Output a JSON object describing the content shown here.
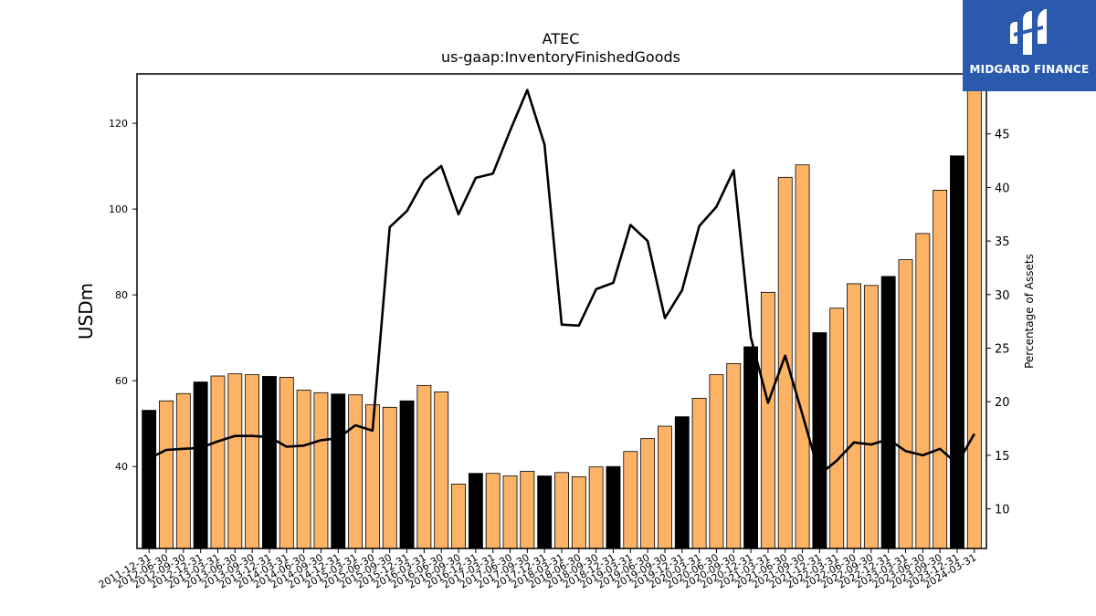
{
  "logo": {
    "text": "MIDGARD FINANCE"
  },
  "colors": {
    "annual": "#000000",
    "quarterly": "#fdb366",
    "line": "#000000",
    "logo_bg": "#2b5aad"
  },
  "chart_data": {
    "type": "bar",
    "title": "ATEC",
    "subtitle": "us-gaap:InventoryFinishedGoods",
    "ylabel": "USDm",
    "y2label": "Percentage of Assets",
    "ylim": [
      20.9,
      131.5
    ],
    "y2lim": [
      6.3,
      50.6
    ],
    "yticks": [
      40,
      60,
      80,
      100,
      120
    ],
    "y2ticks": [
      10,
      15,
      20,
      25,
      30,
      35,
      40,
      45
    ],
    "categories": [
      "2011-12-31",
      "2012-06-30",
      "2012-09-30",
      "2012-12-31",
      "2013-03-31",
      "2013-06-30",
      "2013-09-30",
      "2013-12-31",
      "2014-03-31",
      "2014-06-30",
      "2014-09-30",
      "2014-12-31",
      "2015-03-31",
      "2015-06-30",
      "2015-09-30",
      "2015-12-31",
      "2016-03-31",
      "2016-06-30",
      "2016-09-30",
      "2016-12-31",
      "2017-03-31",
      "2017-06-30",
      "2017-09-30",
      "2017-12-31",
      "2018-03-31",
      "2018-06-30",
      "2018-09-30",
      "2018-12-31",
      "2019-03-31",
      "2019-06-30",
      "2019-09-30",
      "2019-12-31",
      "2020-03-31",
      "2020-06-30",
      "2020-09-30",
      "2020-12-31",
      "2021-03-31",
      "2021-06-30",
      "2021-09-30",
      "2021-12-31",
      "2022-03-31",
      "2022-06-30",
      "2022-09-30",
      "2022-12-31",
      "2023-03-31",
      "2023-06-30",
      "2023-09-30",
      "2023-12-31",
      "2024-03-31"
    ],
    "annual": [
      true,
      false,
      false,
      true,
      false,
      false,
      false,
      true,
      false,
      false,
      false,
      true,
      false,
      false,
      false,
      true,
      false,
      false,
      false,
      true,
      false,
      false,
      false,
      true,
      false,
      false,
      false,
      true,
      false,
      false,
      false,
      true,
      false,
      false,
      false,
      true,
      false,
      false,
      false,
      true,
      false,
      false,
      false,
      true,
      false,
      false,
      false,
      true,
      false
    ],
    "series": [
      {
        "type": "bar",
        "values": [
          53.1,
          55.3,
          57.0,
          59.7,
          61.1,
          61.6,
          61.4,
          61.0,
          60.8,
          57.8,
          57.2,
          56.9,
          56.7,
          54.4,
          53.8,
          55.3,
          58.9,
          57.4,
          35.9,
          38.4,
          38.4,
          37.8,
          38.9,
          37.8,
          38.6,
          37.6,
          39.9,
          40.0,
          43.5,
          46.5,
          49.4,
          51.6,
          55.9,
          61.4,
          64.0,
          67.9,
          80.6,
          107.4,
          110.3,
          71.2,
          76.9,
          82.6,
          82.2,
          84.3,
          88.2,
          94.3,
          104.4,
          112.4,
          131.5
        ]
      },
      {
        "type": "line",
        "axis": "right",
        "values": [
          14.7,
          15.5,
          15.6,
          15.7,
          16.3,
          16.8,
          16.8,
          16.7,
          15.8,
          15.9,
          16.4,
          16.6,
          17.8,
          17.3,
          36.3,
          37.8,
          40.7,
          42.0,
          37.5,
          40.9,
          41.3,
          45.3,
          49.1,
          44.0,
          27.2,
          27.1,
          30.5,
          31.1,
          36.5,
          35.0,
          27.8,
          30.4,
          36.4,
          38.2,
          41.6,
          26.0,
          19.9,
          24.3,
          18.8,
          13.2,
          14.5,
          16.2,
          16.0,
          16.5,
          15.4,
          15.0,
          15.6,
          14.2,
          17.0
        ]
      }
    ]
  }
}
